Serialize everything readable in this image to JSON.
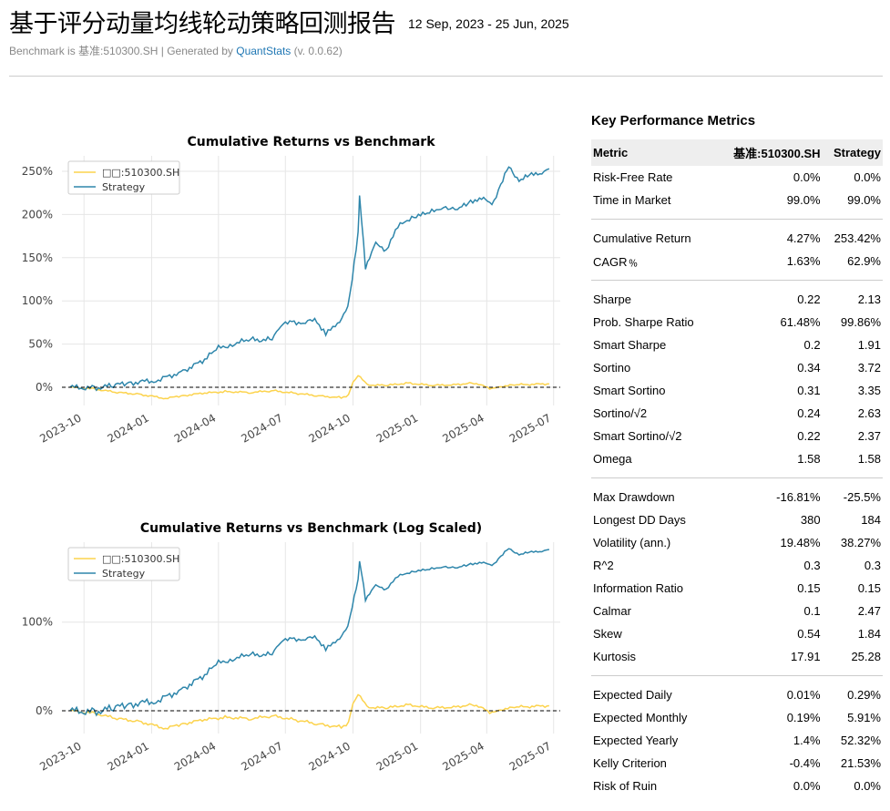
{
  "header": {
    "title": "基于评分动量均线轮动策略回测报告",
    "date_range": "12 Sep, 2023 - 25 Jun, 2025",
    "subtitle_prefix": "Benchmark is 基准:510300.SH | Generated by ",
    "subtitle_link": "QuantStats",
    "subtitle_suffix": " (v. 0.0.62)"
  },
  "charts": [
    {
      "title": "Cumulative Returns vs Benchmark",
      "legend": [
        "□□:510300.SH",
        "Strategy"
      ],
      "y_ticks": [
        "250%",
        "200%",
        "150%",
        "100%",
        "50%",
        "0%"
      ],
      "x_ticks": [
        "2023-10",
        "2024-01",
        "2024-04",
        "2024-07",
        "2024-10",
        "2025-01",
        "2025-04",
        "2025-07"
      ]
    },
    {
      "title": "Cumulative Returns vs Benchmark (Log Scaled)",
      "legend": [
        "□□:510300.SH",
        "Strategy"
      ],
      "y_ticks": [
        "100%",
        "0%"
      ],
      "x_ticks": [
        "2023-10",
        "2024-01",
        "2024-04",
        "2024-07",
        "2024-10",
        "2025-01",
        "2025-04",
        "2025-07"
      ]
    }
  ],
  "chart_data": [
    {
      "type": "line",
      "title": "Cumulative Returns vs Benchmark",
      "ylim": [
        -0.2,
        2.7
      ],
      "series": [
        {
          "name": "□□:510300.SH",
          "color": "#fcd34d",
          "x": [
            "2023-09-12",
            "2023-10-15",
            "2023-11-15",
            "2023-12-15",
            "2024-01-20",
            "2024-02-10",
            "2024-03-10",
            "2024-04-10",
            "2024-05-15",
            "2024-06-15",
            "2024-07-15",
            "2024-08-15",
            "2024-09-15",
            "2024-09-25",
            "2024-10-01",
            "2024-10-08",
            "2024-10-20",
            "2024-11-15",
            "2024-12-15",
            "2025-01-15",
            "2025-02-15",
            "2025-03-15",
            "2025-04-08",
            "2025-04-20",
            "2025-05-15",
            "2025-06-25"
          ],
          "values": [
            0.0,
            -0.02,
            -0.06,
            -0.08,
            -0.13,
            -0.1,
            -0.07,
            -0.05,
            -0.06,
            -0.04,
            -0.07,
            -0.1,
            -0.12,
            -0.09,
            0.06,
            0.14,
            0.03,
            0.02,
            0.05,
            0.02,
            0.03,
            0.05,
            -0.02,
            0.01,
            0.03,
            0.04
          ]
        },
        {
          "name": "Strategy",
          "color": "#2e86ab",
          "x": [
            "2023-09-12",
            "2023-10-15",
            "2023-11-10",
            "2023-12-01",
            "2024-01-10",
            "2024-02-10",
            "2024-03-10",
            "2024-04-01",
            "2024-04-20",
            "2024-05-15",
            "2024-06-10",
            "2024-06-25",
            "2024-07-10",
            "2024-07-25",
            "2024-08-10",
            "2024-08-25",
            "2024-09-10",
            "2024-09-24",
            "2024-09-30",
            "2024-10-08",
            "2024-10-10",
            "2024-10-18",
            "2024-11-01",
            "2024-11-15",
            "2024-12-01",
            "2024-12-20",
            "2025-01-10",
            "2025-02-01",
            "2025-02-20",
            "2025-03-10",
            "2025-03-25",
            "2025-04-08",
            "2025-04-20",
            "2025-05-01",
            "2025-05-15",
            "2025-06-01",
            "2025-06-15",
            "2025-06-25"
          ],
          "values": [
            0.0,
            -0.01,
            0.02,
            0.05,
            0.08,
            0.18,
            0.3,
            0.45,
            0.5,
            0.55,
            0.55,
            0.7,
            0.78,
            0.72,
            0.8,
            0.62,
            0.72,
            0.95,
            1.25,
            1.8,
            2.2,
            1.4,
            1.65,
            1.6,
            1.85,
            1.98,
            2.0,
            2.1,
            2.05,
            2.15,
            2.2,
            2.1,
            2.35,
            2.55,
            2.4,
            2.45,
            2.5,
            2.53
          ]
        }
      ]
    },
    {
      "type": "line",
      "title": "Cumulative Returns vs Benchmark (Log Scaled)",
      "log_scale": true,
      "series": [
        {
          "name": "□□:510300.SH",
          "color": "#fcd34d"
        },
        {
          "name": "Strategy",
          "color": "#2e86ab"
        }
      ]
    }
  ],
  "metrics": {
    "title": "Key Performance Metrics",
    "headers": [
      "Metric",
      "基准:510300.SH",
      "Strategy"
    ],
    "groups": [
      [
        [
          "Risk-Free Rate",
          "0.0%",
          "0.0%"
        ],
        [
          "Time in Market",
          "99.0%",
          "99.0%"
        ]
      ],
      [
        [
          "Cumulative Return",
          "4.27%",
          "253.42%"
        ],
        [
          "CAGR﹪",
          "1.63%",
          "62.9%"
        ]
      ],
      [
        [
          "Sharpe",
          "0.22",
          "2.13"
        ],
        [
          "Prob. Sharpe Ratio",
          "61.48%",
          "99.86%"
        ],
        [
          "Smart Sharpe",
          "0.2",
          "1.91"
        ],
        [
          "Sortino",
          "0.34",
          "3.72"
        ],
        [
          "Smart Sortino",
          "0.31",
          "3.35"
        ],
        [
          "Sortino/√2",
          "0.24",
          "2.63"
        ],
        [
          "Smart Sortino/√2",
          "0.22",
          "2.37"
        ],
        [
          "Omega",
          "1.58",
          "1.58"
        ]
      ],
      [
        [
          "Max Drawdown",
          "-16.81%",
          "-25.5%"
        ],
        [
          "Longest DD Days",
          "380",
          "184"
        ],
        [
          "Volatility (ann.)",
          "19.48%",
          "38.27%"
        ],
        [
          "R^2",
          "0.3",
          "0.3"
        ],
        [
          "Information Ratio",
          "0.15",
          "0.15"
        ],
        [
          "Calmar",
          "0.1",
          "2.47"
        ],
        [
          "Skew",
          "0.54",
          "1.84"
        ],
        [
          "Kurtosis",
          "17.91",
          "25.28"
        ]
      ],
      [
        [
          "Expected Daily",
          "0.01%",
          "0.29%"
        ],
        [
          "Expected Monthly",
          "0.19%",
          "5.91%"
        ],
        [
          "Expected Yearly",
          "1.4%",
          "52.32%"
        ],
        [
          "Kelly Criterion",
          "-0.4%",
          "21.53%"
        ],
        [
          "Risk of Ruin",
          "0.0%",
          "0.0%"
        ]
      ]
    ]
  }
}
